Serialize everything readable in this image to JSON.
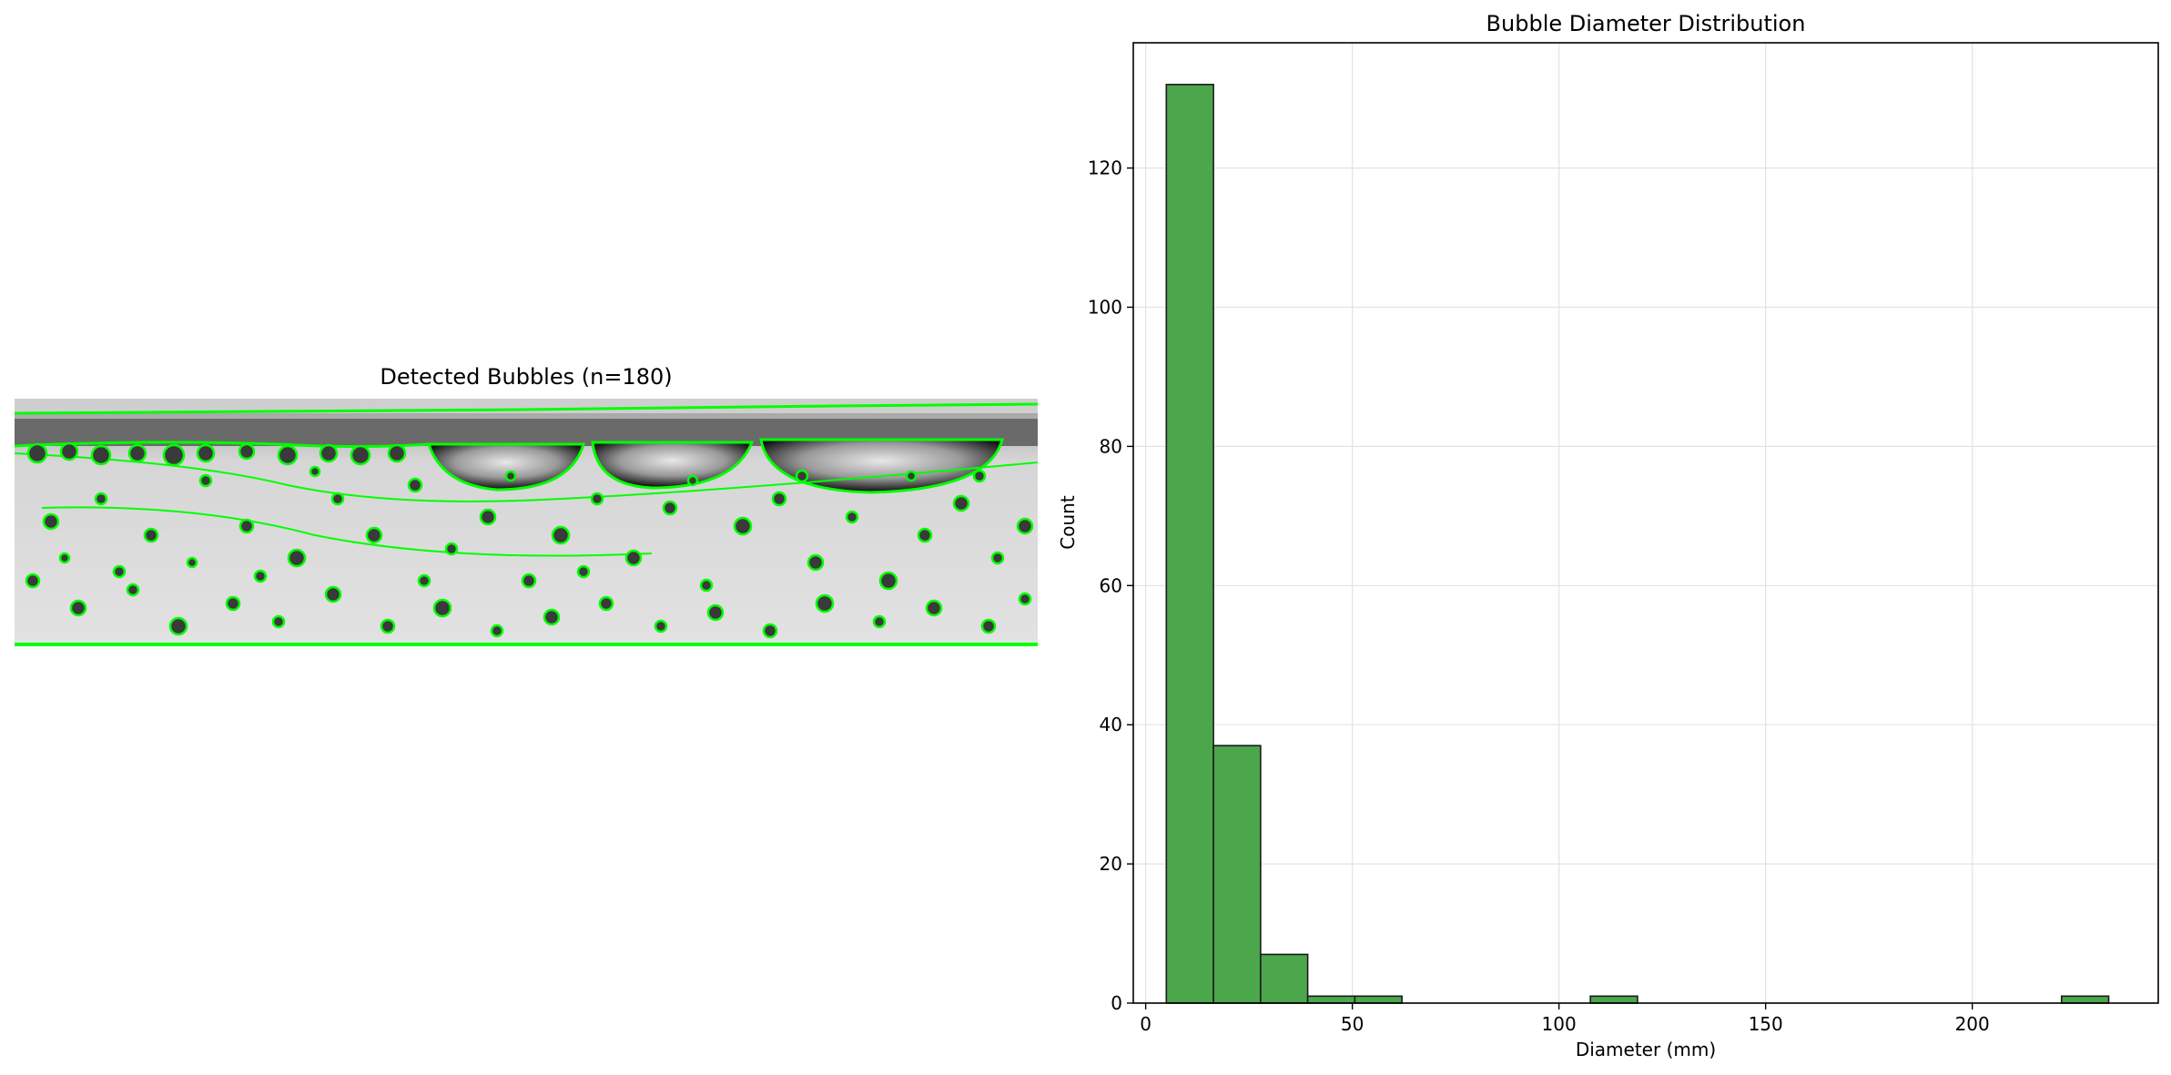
{
  "left_panel": {
    "title": "Detected Bubbles (n=180)"
  },
  "chart_data": {
    "type": "bar",
    "title": "Bubble Diameter Distribution",
    "xlabel": "Diameter (mm)",
    "ylabel": "Count",
    "xlim": [
      -3,
      245
    ],
    "ylim": [
      0,
      138
    ],
    "xticks": [
      0,
      50,
      100,
      150,
      200
    ],
    "yticks": [
      0,
      20,
      40,
      60,
      80,
      100,
      120
    ],
    "grid": true,
    "bar_color": "#4ca64c",
    "bar_edge_color": "#1a1a1a",
    "bins": [
      {
        "x0": 5.0,
        "x1": 16.4,
        "count": 132
      },
      {
        "x0": 16.4,
        "x1": 27.8,
        "count": 37
      },
      {
        "x0": 27.8,
        "x1": 39.2,
        "count": 7
      },
      {
        "x0": 39.2,
        "x1": 50.6,
        "count": 1
      },
      {
        "x0": 50.6,
        "x1": 62.0,
        "count": 1
      },
      {
        "x0": 62.0,
        "x1": 73.4,
        "count": 0
      },
      {
        "x0": 73.4,
        "x1": 84.8,
        "count": 0
      },
      {
        "x0": 84.8,
        "x1": 96.2,
        "count": 0
      },
      {
        "x0": 96.2,
        "x1": 107.6,
        "count": 0
      },
      {
        "x0": 107.6,
        "x1": 119.0,
        "count": 1
      },
      {
        "x0": 119.0,
        "x1": 130.4,
        "count": 0
      },
      {
        "x0": 130.4,
        "x1": 141.8,
        "count": 0
      },
      {
        "x0": 141.8,
        "x1": 153.2,
        "count": 0
      },
      {
        "x0": 153.2,
        "x1": 164.6,
        "count": 0
      },
      {
        "x0": 164.6,
        "x1": 176.0,
        "count": 0
      },
      {
        "x0": 176.0,
        "x1": 187.4,
        "count": 0
      },
      {
        "x0": 187.4,
        "x1": 198.8,
        "count": 0
      },
      {
        "x0": 198.8,
        "x1": 210.2,
        "count": 0
      },
      {
        "x0": 210.2,
        "x1": 221.6,
        "count": 0
      },
      {
        "x0": 221.6,
        "x1": 233.0,
        "count": 1
      }
    ]
  }
}
